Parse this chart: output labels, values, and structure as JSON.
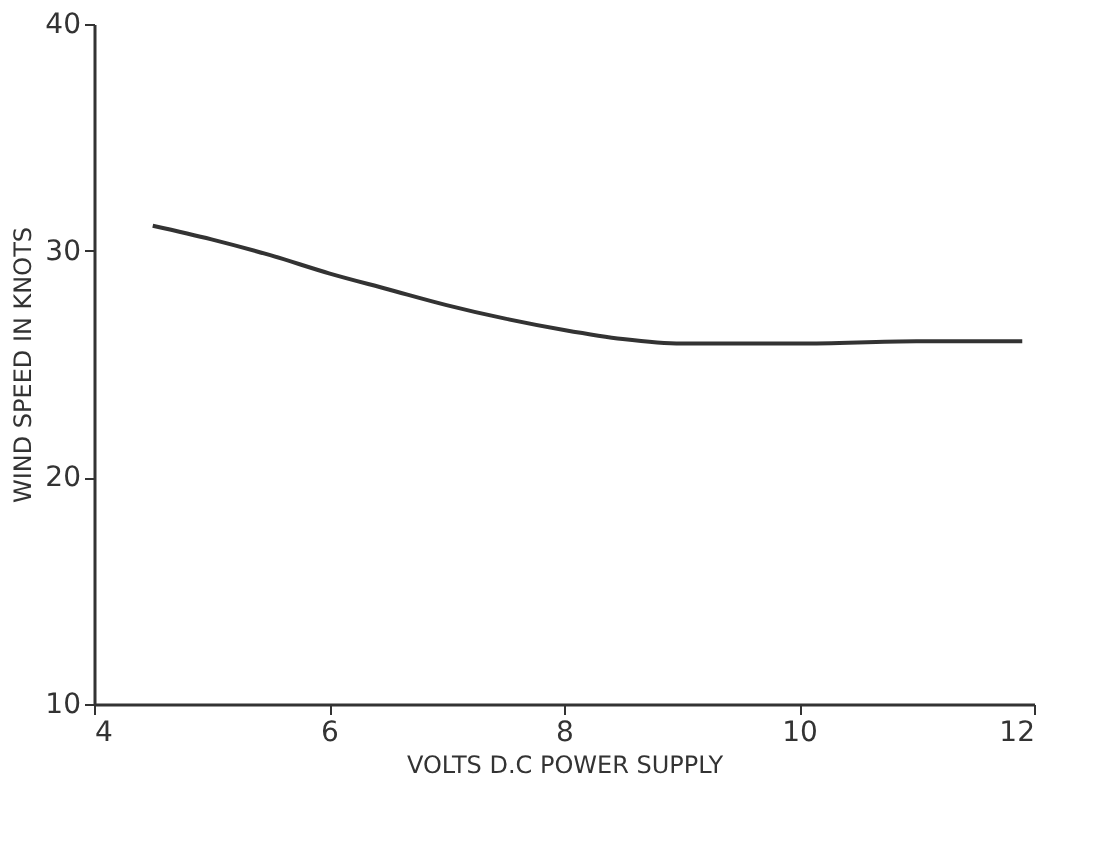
{
  "chart_data": {
    "type": "line",
    "xlabel": "VOLTS D.C POWER SUPPLY",
    "ylabel": "WIND SPEED IN KNOTS",
    "x": [
      4.5,
      5,
      5.5,
      6,
      6.5,
      7,
      7.5,
      8,
      8.5,
      9,
      9.5,
      10,
      11,
      11.9
    ],
    "series": [
      {
        "color": "#333333",
        "values": [
          31.1,
          30.5,
          29.8,
          29.0,
          28.3,
          27.6,
          27.0,
          26.5,
          26.1,
          25.9,
          25.9,
          25.9,
          26.0,
          26.0
        ]
      }
    ],
    "xlim": [
      4,
      12
    ],
    "xticks": [
      4,
      6,
      8,
      10,
      12
    ],
    "ylim": [
      10,
      40
    ],
    "yticks": [
      10,
      20,
      30,
      40
    ],
    "grid": false,
    "marker": "none",
    "line_style": "solid"
  }
}
